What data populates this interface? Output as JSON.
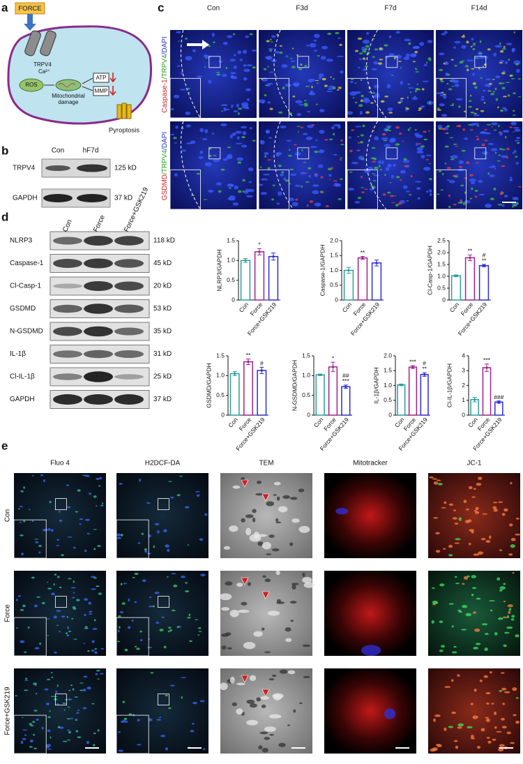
{
  "panel_a": {
    "letter": "a",
    "force": "FORCE",
    "channel": "TRPV4",
    "ion": "Ca²⁺",
    "ros": "ROS",
    "damage": [
      "Mitochondrial",
      "damage"
    ],
    "atp": "ATP",
    "mmp": "MMP",
    "pyroptosis": "Pyroptosis"
  },
  "panel_b": {
    "letter": "b",
    "lanes": [
      "Con",
      "hF7d"
    ],
    "rows": [
      {
        "protein": "TRPV4",
        "size": "125 kD"
      },
      {
        "protein": "GAPDH",
        "size": "37 kD"
      }
    ]
  },
  "panel_c": {
    "letter": "c",
    "columns": [
      "Con",
      "F3d",
      "F7d",
      "F14d"
    ],
    "rows": [
      [
        "Caspase-1",
        "/TRPV4",
        "/DAPI"
      ],
      [
        "GSDMD",
        "/TRPV4",
        "/DAPI"
      ]
    ]
  },
  "panel_d": {
    "letter": "d",
    "lanes": [
      "Con",
      "Force",
      "Force+GSK219"
    ],
    "blots": [
      {
        "protein": "NLRP3",
        "size": "118 kD"
      },
      {
        "protein": "Caspase-1",
        "size": "45 kD"
      },
      {
        "protein": "Cl-Casp-1",
        "size": "20 kD"
      },
      {
        "protein": "GSDMD",
        "size": "53 kD"
      },
      {
        "protein": "N-GSDMD",
        "size": "35 kD"
      },
      {
        "protein": "IL-1β",
        "size": "31 kD"
      },
      {
        "protein": "Cl-IL-1β",
        "size": "25 kD"
      },
      {
        "protein": "GAPDH",
        "size": "37 kD"
      }
    ]
  },
  "panel_e": {
    "letter": "e",
    "columns": [
      "Fluo 4",
      "H2DCF-DA",
      "TEM",
      "Mitotracker",
      "JC-1"
    ],
    "rows": [
      "Con",
      "Force",
      "Force+GSK219"
    ]
  },
  "chart_data": [
    {
      "type": "bar",
      "ylabel": "NLRP3/GAPDH",
      "categories": [
        "Con",
        "Force",
        "Force+GSK219"
      ],
      "values": [
        1.0,
        1.22,
        1.1
      ],
      "errors": [
        0.05,
        0.08,
        0.09
      ],
      "significance": [
        [],
        [
          "*"
        ],
        []
      ],
      "colors": [
        "#2a9d9d",
        "#a0208e",
        "#2b2bd6"
      ],
      "ylim": [
        0,
        1.5
      ],
      "yticks": [
        0,
        0.5,
        {
          "value": 1,
          "label": "1.0"
        },
        1.5
      ]
    },
    {
      "type": "bar",
      "ylabel": "Caspase-1/GAPDH",
      "categories": [
        "Con",
        "Force",
        "Force+GSK219"
      ],
      "values": [
        1.0,
        1.42,
        1.25
      ],
      "errors": [
        0.1,
        0.05,
        0.1
      ],
      "significance": [
        [],
        [
          "**"
        ],
        []
      ],
      "colors": [
        "#2a9d9d",
        "#a0208e",
        "#2b2bd6"
      ],
      "ylim": [
        0,
        2
      ],
      "yticks": [
        0,
        0.5,
        {
          "value": 1,
          "label": "1.0"
        },
        1.5,
        {
          "value": 2,
          "label": "2.0"
        }
      ]
    },
    {
      "type": "bar",
      "ylabel": "Cl-Casp-1/GAPDH",
      "categories": [
        "Con",
        "Force",
        "Force+GSK219"
      ],
      "values": [
        1.02,
        1.78,
        1.45
      ],
      "errors": [
        0.04,
        0.12,
        0.05
      ],
      "significance": [
        [],
        [
          "**"
        ],
        [
          "#",
          "**"
        ]
      ],
      "colors": [
        "#2a9d9d",
        "#a0208e",
        "#2b2bd6"
      ],
      "ylim": [
        0,
        2.5
      ],
      "yticks": [
        0,
        0.5,
        {
          "value": 1,
          "label": "1.0"
        },
        1.5,
        {
          "value": 2,
          "label": "2.0"
        },
        2.5
      ]
    },
    {
      "type": "bar",
      "ylabel": "GSDMD/GAPDH",
      "categories": [
        "Con",
        "Force",
        "Force+GSK219"
      ],
      "values": [
        1.05,
        1.35,
        1.13
      ],
      "errors": [
        0.05,
        0.07,
        0.08
      ],
      "significance": [
        [],
        [
          "**"
        ],
        [
          "#"
        ]
      ],
      "colors": [
        "#2a9d9d",
        "#a0208e",
        "#2b2bd6"
      ],
      "ylim": [
        0,
        1.5
      ],
      "yticks": [
        0,
        0.5,
        {
          "value": 1,
          "label": "1.0"
        },
        1.5
      ]
    },
    {
      "type": "bar",
      "ylabel": "N-GSDMD/GAPDH",
      "categories": [
        "Con",
        "Force",
        "Force+GSK219"
      ],
      "values": [
        1.02,
        1.22,
        0.72
      ],
      "errors": [
        0.02,
        0.12,
        0.04
      ],
      "significance": [
        [],
        [
          "*"
        ],
        [
          "##",
          "***"
        ]
      ],
      "colors": [
        "#2a9d9d",
        "#a0208e",
        "#2b2bd6"
      ],
      "ylim": [
        0,
        1.5
      ],
      "yticks": [
        0,
        0.5,
        {
          "value": 1,
          "label": "1.0"
        },
        1.5
      ]
    },
    {
      "type": "bar",
      "ylabel": "IL-1β/GAPDH",
      "categories": [
        "Con",
        "Force",
        "Force+GSK219"
      ],
      "values": [
        1.02,
        1.62,
        1.37
      ],
      "errors": [
        0.03,
        0.05,
        0.06
      ],
      "significance": [
        [],
        [
          "***"
        ],
        [
          "#",
          "**"
        ]
      ],
      "colors": [
        "#2a9d9d",
        "#a0208e",
        "#2b2bd6"
      ],
      "ylim": [
        0,
        2
      ],
      "yticks": [
        0,
        0.5,
        {
          "value": 1,
          "label": "1.0"
        },
        1.5,
        {
          "value": 2,
          "label": "2.0"
        }
      ]
    },
    {
      "type": "bar",
      "ylabel": "Cl-IL-1β/GAPDH",
      "categories": [
        "Con",
        "Force",
        "Force+GSK219"
      ],
      "values": [
        1.05,
        3.2,
        0.88
      ],
      "errors": [
        0.15,
        0.25,
        0.08
      ],
      "significance": [
        [],
        [
          "***"
        ],
        [
          "###"
        ]
      ],
      "colors": [
        "#2a9d9d",
        "#a0208e",
        "#2b2bd6"
      ],
      "ylim": [
        0,
        4
      ],
      "yticks": [
        0,
        1,
        2,
        3,
        4
      ]
    }
  ]
}
